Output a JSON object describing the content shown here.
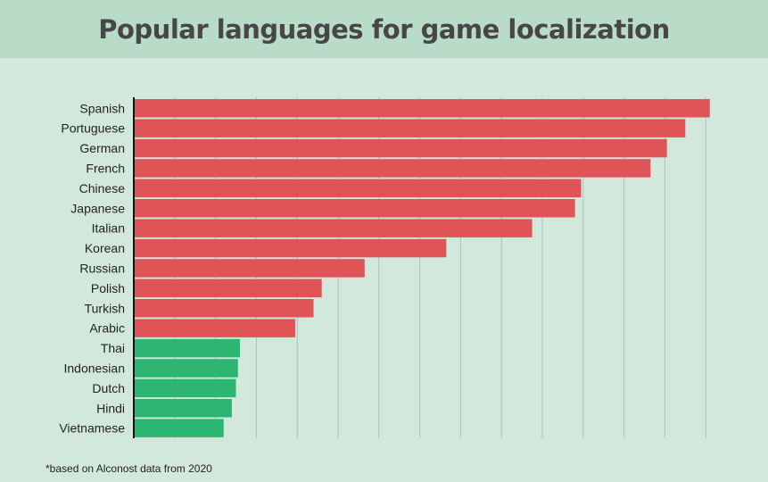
{
  "header": {
    "title": "Popular languages for game localization"
  },
  "footnote": "*based on Alconost data from 2020",
  "colors": {
    "background": "#d3e8dd",
    "header_band": "#b9dcc9",
    "primary_bar": "#df5557",
    "secondary_bar": "#2db572",
    "gridline": "#a9c4b6"
  },
  "chart_data": {
    "type": "bar",
    "orientation": "horizontal",
    "title": "Popular languages for game localization",
    "xlabel": "",
    "ylabel": "",
    "xlim": [
      0,
      14
    ],
    "grid": true,
    "categories": [
      "Spanish",
      "Portuguese",
      "German",
      "French",
      "Chinese",
      "Japanese",
      "Italian",
      "Korean",
      "Russian",
      "Polish",
      "Turkish",
      "Arabic",
      "Thai",
      "Indonesian",
      "Dutch",
      "Hindi",
      "Vietnamese"
    ],
    "values": [
      14.1,
      13.5,
      13.05,
      12.65,
      10.95,
      10.8,
      9.75,
      7.65,
      5.65,
      4.6,
      4.4,
      3.95,
      2.6,
      2.55,
      2.5,
      2.4,
      2.2
    ],
    "bar_color_groups": [
      "primary",
      "primary",
      "primary",
      "primary",
      "primary",
      "primary",
      "primary",
      "primary",
      "primary",
      "primary",
      "primary",
      "primary",
      "secondary",
      "secondary",
      "secondary",
      "secondary",
      "secondary"
    ]
  }
}
